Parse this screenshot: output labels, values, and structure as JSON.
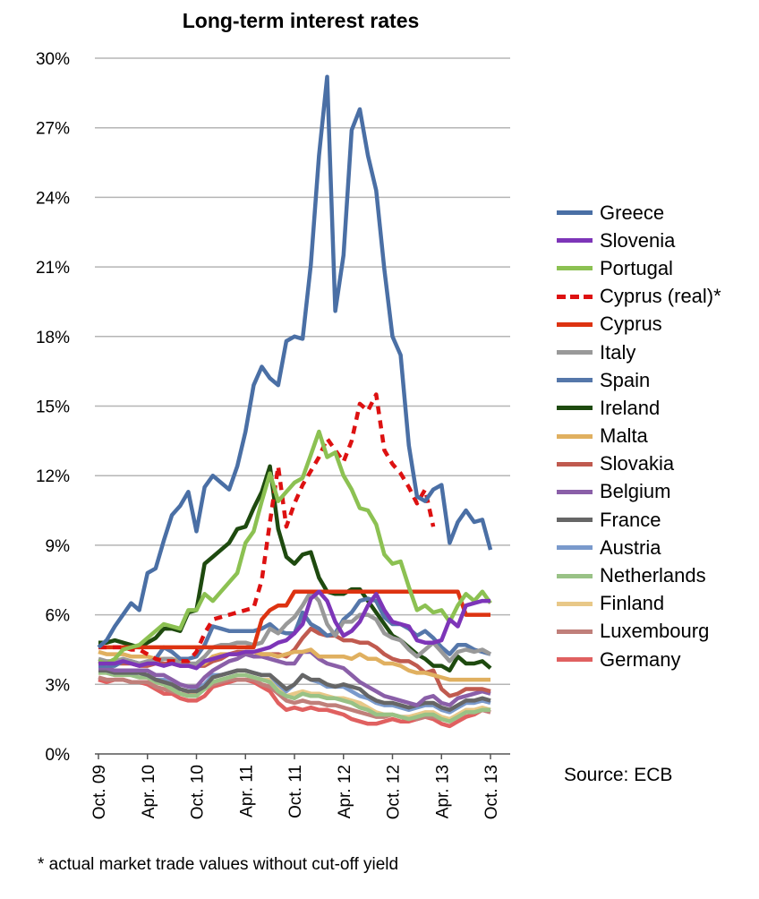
{
  "chart_data": {
    "type": "line",
    "title": "Long-term interest rates",
    "source": "Source: ECB",
    "footnote": "* actual market trade values without cut-off yield",
    "xlabel": "",
    "ylabel": "",
    "x_ticks": [
      "Oct. 09",
      "Apr. 10",
      "Oct. 10",
      "Apr. 11",
      "Oct. 11",
      "Apr. 12",
      "Oct. 12",
      "Apr. 13",
      "Oct. 13"
    ],
    "y_ticks": [
      "0%",
      "3%",
      "6%",
      "9%",
      "12%",
      "15%",
      "18%",
      "21%",
      "24%",
      "27%",
      "30%"
    ],
    "ylim": [
      0,
      30
    ],
    "grid": true,
    "legend_position": "right",
    "x_months": [
      "Oct. 09",
      "Nov. 09",
      "Dec. 09",
      "Jan. 10",
      "Feb. 10",
      "Mar. 10",
      "Apr. 10",
      "May 10",
      "Jun. 10",
      "Jul. 10",
      "Aug. 10",
      "Sep. 10",
      "Oct. 10",
      "Nov. 10",
      "Dec. 10",
      "Jan. 11",
      "Feb. 11",
      "Mar. 11",
      "Apr. 11",
      "May 11",
      "Jun. 11",
      "Jul. 11",
      "Aug. 11",
      "Sep. 11",
      "Oct. 11",
      "Nov. 11",
      "Dec. 11",
      "Jan. 12",
      "Feb. 12",
      "Mar. 12",
      "Apr. 12",
      "May 12",
      "Jun. 12",
      "Jul. 12",
      "Aug. 12",
      "Sep. 12",
      "Oct. 12",
      "Nov. 12",
      "Dec. 12",
      "Jan. 13",
      "Feb. 13",
      "Mar. 13",
      "Apr. 13",
      "May 13",
      "Jun. 13",
      "Jul. 13",
      "Aug. 13",
      "Sep. 13",
      "Oct. 13"
    ],
    "series": [
      {
        "name": "Greece",
        "color": "#4a6fa5",
        "dashed": false,
        "start": 0,
        "values": [
          4.6,
          4.9,
          5.5,
          6.0,
          6.5,
          6.2,
          7.8,
          8.0,
          9.2,
          10.3,
          10.7,
          11.3,
          9.6,
          11.5,
          12.0,
          11.7,
          11.4,
          12.4,
          13.9,
          15.9,
          16.7,
          16.2,
          15.9,
          17.8,
          18.0,
          17.9,
          21.1,
          25.8,
          29.2,
          19.1,
          21.5,
          26.9,
          27.8,
          25.8,
          24.3,
          20.9,
          18.0,
          17.2,
          13.3,
          11.1,
          10.9,
          11.4,
          11.6,
          9.1,
          10.0,
          10.5,
          10.0,
          10.1,
          8.8
        ]
      },
      {
        "name": "Slovenia",
        "color": "#7d35b8",
        "dashed": false,
        "start": 0,
        "values": [
          3.9,
          3.9,
          3.9,
          4.0,
          3.9,
          3.8,
          3.9,
          3.9,
          3.8,
          3.9,
          3.8,
          3.8,
          3.7,
          4.0,
          4.1,
          4.2,
          4.3,
          4.3,
          4.4,
          4.4,
          4.5,
          4.6,
          4.8,
          4.9,
          5.2,
          5.6,
          6.7,
          7.0,
          6.6,
          5.7,
          5.1,
          5.3,
          5.7,
          6.4,
          6.9,
          6.2,
          5.7,
          5.6,
          5.5,
          4.9,
          4.8,
          4.8,
          4.9,
          5.8,
          5.5,
          6.4,
          6.5,
          6.6,
          6.6
        ]
      },
      {
        "name": "Portugal",
        "color": "#8cc152",
        "dashed": false,
        "start": 0,
        "values": [
          4.0,
          3.9,
          4.1,
          4.5,
          4.6,
          4.7,
          5.0,
          5.3,
          5.6,
          5.5,
          5.4,
          6.2,
          6.2,
          6.9,
          6.6,
          7.0,
          7.4,
          7.8,
          9.1,
          9.6,
          10.9,
          12.1,
          10.9,
          11.3,
          11.7,
          11.9,
          12.9,
          13.9,
          12.8,
          13.0,
          12.0,
          11.4,
          10.6,
          10.5,
          9.9,
          8.6,
          8.2,
          8.3,
          7.2,
          6.2,
          6.4,
          6.1,
          6.2,
          5.7,
          6.4,
          6.9,
          6.6,
          7.0,
          6.5
        ]
      },
      {
        "name": "Cyprus (real)*",
        "color": "#dd1111",
        "dashed": true,
        "start": 0,
        "values": [
          4.6,
          4.6,
          4.6,
          4.6,
          4.5,
          4.5,
          4.3,
          4.1,
          4.0,
          4.0,
          4.0,
          4.0,
          4.4,
          5.2,
          5.8,
          5.9,
          6.0,
          6.1,
          6.2,
          6.3,
          7.5,
          10.0,
          12.4,
          9.8,
          10.8,
          11.6,
          12.2,
          12.8,
          13.6,
          13.1,
          12.6,
          13.5,
          15.1,
          14.8,
          15.5,
          13.1,
          12.5,
          12.1,
          11.5,
          10.8,
          11.4,
          9.8
        ]
      },
      {
        "name": "Cyprus",
        "color": "#dd3311",
        "dashed": false,
        "start": 0,
        "values": [
          4.6,
          4.6,
          4.6,
          4.6,
          4.6,
          4.6,
          4.6,
          4.6,
          4.6,
          4.6,
          4.6,
          4.6,
          4.6,
          4.6,
          4.6,
          4.6,
          4.6,
          4.6,
          4.6,
          4.6,
          5.8,
          6.2,
          6.4,
          6.4,
          7.0,
          7.0,
          7.0,
          7.0,
          7.0,
          7.0,
          7.0,
          7.0,
          7.0,
          7.0,
          7.0,
          7.0,
          7.0,
          7.0,
          7.0,
          7.0,
          7.0,
          7.0,
          7.0,
          7.0,
          7.0,
          6.0,
          6.0,
          6.0,
          6.0
        ]
      },
      {
        "name": "Italy",
        "color": "#999999",
        "dashed": false,
        "start": 0,
        "values": [
          4.1,
          4.0,
          4.0,
          4.1,
          4.0,
          3.9,
          4.0,
          4.0,
          4.1,
          4.1,
          3.9,
          3.9,
          3.9,
          4.2,
          4.6,
          4.7,
          4.7,
          4.8,
          4.8,
          4.7,
          4.8,
          5.4,
          5.2,
          5.6,
          5.9,
          6.4,
          7.0,
          6.6,
          5.6,
          5.1,
          5.7,
          5.7,
          6.0,
          6.0,
          5.8,
          5.2,
          5.0,
          4.9,
          4.5,
          4.2,
          4.5,
          4.8,
          4.4,
          4.0,
          4.4,
          4.5,
          4.4,
          4.5,
          4.3
        ]
      },
      {
        "name": "Spain",
        "color": "#5577aa",
        "dashed": false,
        "start": 0,
        "values": [
          3.8,
          3.8,
          3.8,
          4.0,
          4.0,
          3.9,
          3.9,
          4.1,
          4.6,
          4.4,
          4.1,
          4.1,
          4.2,
          4.7,
          5.5,
          5.4,
          5.3,
          5.3,
          5.3,
          5.3,
          5.4,
          5.6,
          5.3,
          5.2,
          5.2,
          6.1,
          5.6,
          5.4,
          5.1,
          5.2,
          5.8,
          6.1,
          6.6,
          6.7,
          6.6,
          5.9,
          5.6,
          5.6,
          5.4,
          5.1,
          5.3,
          5.0,
          4.6,
          4.3,
          4.7,
          4.7,
          4.5,
          4.4,
          4.3
        ]
      },
      {
        "name": "Ireland",
        "color": "#1e4a0f",
        "dashed": false,
        "start": 0,
        "values": [
          4.8,
          4.8,
          4.9,
          4.8,
          4.7,
          4.6,
          4.8,
          5.0,
          5.4,
          5.4,
          5.3,
          6.1,
          6.2,
          8.2,
          8.5,
          8.8,
          9.1,
          9.7,
          9.8,
          10.6,
          11.3,
          12.4,
          9.7,
          8.5,
          8.2,
          8.6,
          8.7,
          7.6,
          7.0,
          6.9,
          6.9,
          7.1,
          7.1,
          6.6,
          6.1,
          5.6,
          5.1,
          4.9,
          4.6,
          4.3,
          4.1,
          3.8,
          3.8,
          3.6,
          4.2,
          3.9,
          3.9,
          4.0,
          3.7
        ]
      },
      {
        "name": "Malta",
        "color": "#e0b060",
        "dashed": false,
        "start": 0,
        "values": [
          4.4,
          4.3,
          4.3,
          4.3,
          4.2,
          4.2,
          4.2,
          4.1,
          4.1,
          4.1,
          4.0,
          3.9,
          3.8,
          3.9,
          4.2,
          4.3,
          4.3,
          4.3,
          4.4,
          4.4,
          4.3,
          4.3,
          4.2,
          4.3,
          4.4,
          4.4,
          4.5,
          4.2,
          4.2,
          4.2,
          4.2,
          4.1,
          4.3,
          4.1,
          4.1,
          3.9,
          3.9,
          3.8,
          3.6,
          3.5,
          3.5,
          3.4,
          3.3,
          3.2,
          3.2,
          3.2,
          3.2,
          3.2,
          3.2
        ]
      },
      {
        "name": "Slovakia",
        "color": "#c05a4f",
        "dashed": false,
        "start": 0,
        "values": [
          3.9,
          3.9,
          3.9,
          3.9,
          3.9,
          3.8,
          3.8,
          3.9,
          3.9,
          3.9,
          3.8,
          3.8,
          3.8,
          3.8,
          4.0,
          4.1,
          4.3,
          4.4,
          4.4,
          4.4,
          4.3,
          4.3,
          4.3,
          4.2,
          4.5,
          5.0,
          5.4,
          5.2,
          5.1,
          5.1,
          4.9,
          4.9,
          4.8,
          4.8,
          4.6,
          4.3,
          4.1,
          4.0,
          4.0,
          3.8,
          3.5,
          3.6,
          2.8,
          2.5,
          2.6,
          2.8,
          2.8,
          2.8,
          2.7
        ]
      },
      {
        "name": "Belgium",
        "color": "#8a5fa8",
        "dashed": false,
        "start": 0,
        "values": [
          3.7,
          3.7,
          3.6,
          3.6,
          3.6,
          3.6,
          3.6,
          3.4,
          3.4,
          3.2,
          3.0,
          2.9,
          2.9,
          3.3,
          3.6,
          3.8,
          4.0,
          4.1,
          4.3,
          4.2,
          4.2,
          4.1,
          4.0,
          3.9,
          3.9,
          4.4,
          4.4,
          4.1,
          3.9,
          3.8,
          3.7,
          3.4,
          3.1,
          2.9,
          2.7,
          2.5,
          2.4,
          2.3,
          2.2,
          2.1,
          2.4,
          2.5,
          2.2,
          2.1,
          2.4,
          2.5,
          2.6,
          2.7,
          2.6
        ]
      },
      {
        "name": "France",
        "color": "#666666",
        "dashed": false,
        "start": 0,
        "values": [
          3.6,
          3.6,
          3.5,
          3.5,
          3.5,
          3.5,
          3.4,
          3.2,
          3.1,
          3.0,
          2.8,
          2.7,
          2.7,
          2.9,
          3.3,
          3.4,
          3.5,
          3.6,
          3.6,
          3.5,
          3.4,
          3.4,
          3.1,
          2.8,
          3.0,
          3.4,
          3.2,
          3.2,
          3.0,
          2.9,
          3.0,
          2.9,
          2.8,
          2.5,
          2.3,
          2.2,
          2.2,
          2.1,
          2.0,
          2.1,
          2.2,
          2.2,
          2.0,
          1.9,
          2.1,
          2.3,
          2.3,
          2.4,
          2.3
        ]
      },
      {
        "name": "Austria",
        "color": "#7a9acc",
        "dashed": false,
        "start": 0,
        "values": [
          3.6,
          3.6,
          3.5,
          3.6,
          3.5,
          3.5,
          3.4,
          3.2,
          3.2,
          3.0,
          2.8,
          2.7,
          2.8,
          3.0,
          3.4,
          3.4,
          3.5,
          3.6,
          3.6,
          3.5,
          3.4,
          3.4,
          3.0,
          2.7,
          3.0,
          3.4,
          3.2,
          3.1,
          2.9,
          2.9,
          2.9,
          2.7,
          2.5,
          2.4,
          2.2,
          2.1,
          2.1,
          2.0,
          1.9,
          2.0,
          2.1,
          2.1,
          1.9,
          1.8,
          2.0,
          2.2,
          2.2,
          2.3,
          2.2
        ]
      },
      {
        "name": "Netherlands",
        "color": "#99c286",
        "dashed": false,
        "start": 0,
        "values": [
          3.5,
          3.5,
          3.4,
          3.4,
          3.4,
          3.3,
          3.3,
          3.1,
          3.0,
          2.8,
          2.6,
          2.5,
          2.5,
          2.8,
          3.1,
          3.2,
          3.3,
          3.4,
          3.4,
          3.3,
          3.2,
          3.1,
          2.7,
          2.5,
          2.4,
          2.6,
          2.5,
          2.5,
          2.4,
          2.4,
          2.3,
          2.2,
          2.0,
          1.9,
          1.7,
          1.7,
          1.7,
          1.6,
          1.5,
          1.6,
          1.7,
          1.7,
          1.5,
          1.4,
          1.6,
          1.8,
          1.8,
          1.9,
          1.9
        ]
      },
      {
        "name": "Finland",
        "color": "#e8c888",
        "dashed": false,
        "start": 0,
        "values": [
          3.5,
          3.5,
          3.4,
          3.4,
          3.4,
          3.3,
          3.3,
          3.1,
          3.0,
          2.8,
          2.6,
          2.5,
          2.6,
          2.8,
          3.1,
          3.2,
          3.3,
          3.4,
          3.4,
          3.3,
          3.2,
          3.2,
          2.8,
          2.5,
          2.6,
          2.7,
          2.6,
          2.6,
          2.5,
          2.4,
          2.4,
          2.3,
          2.2,
          2.0,
          1.8,
          1.7,
          1.7,
          1.6,
          1.6,
          1.7,
          1.8,
          1.8,
          1.6,
          1.5,
          1.7,
          1.9,
          1.9,
          2.0,
          1.9
        ]
      },
      {
        "name": "Luxembourg",
        "color": "#c07f7a",
        "dashed": false,
        "start": 0,
        "values": [
          3.3,
          3.2,
          3.2,
          3.2,
          3.1,
          3.1,
          3.1,
          2.9,
          2.8,
          2.7,
          2.6,
          2.6,
          2.6,
          2.8,
          3.0,
          3.1,
          3.2,
          3.2,
          3.2,
          3.2,
          3.0,
          2.9,
          2.6,
          2.3,
          2.2,
          2.3,
          2.2,
          2.2,
          2.1,
          2.1,
          2.0,
          1.9,
          1.8,
          1.7,
          1.6,
          1.6,
          1.7,
          1.6,
          1.6,
          1.5,
          1.6,
          1.6,
          1.5,
          1.5,
          1.6,
          1.8,
          1.8,
          1.9,
          1.8
        ]
      },
      {
        "name": "Germany",
        "color": "#e06060",
        "dashed": false,
        "start": 0,
        "values": [
          3.2,
          3.1,
          3.2,
          3.2,
          3.1,
          3.1,
          3.0,
          2.8,
          2.6,
          2.6,
          2.4,
          2.3,
          2.3,
          2.5,
          2.9,
          3.0,
          3.1,
          3.2,
          3.2,
          3.1,
          2.9,
          2.7,
          2.2,
          1.9,
          2.0,
          1.9,
          2.0,
          1.9,
          1.9,
          1.8,
          1.7,
          1.5,
          1.4,
          1.3,
          1.3,
          1.4,
          1.5,
          1.4,
          1.4,
          1.5,
          1.6,
          1.5,
          1.3,
          1.2,
          1.4,
          1.6,
          1.7,
          1.9,
          1.8
        ]
      }
    ]
  }
}
